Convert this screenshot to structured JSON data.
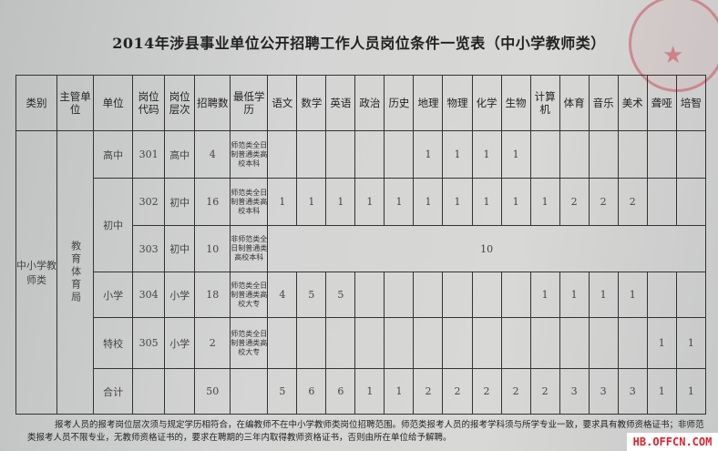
{
  "title": "2014年涉县事业单位公开招聘工作人员岗位条件一览表（中小学教师类）",
  "headers": [
    "类别",
    "主管单位",
    "单位",
    "岗位代码",
    "岗位层次",
    "招聘数",
    "最低学历",
    "语文",
    "数学",
    "英语",
    "政治",
    "历史",
    "地理",
    "物理",
    "化学",
    "生物",
    "计算机",
    "体育",
    "音乐",
    "美术",
    "聋哑",
    "培智"
  ],
  "category": "中小学教师类",
  "authority": "教育体育局",
  "rows": [
    {
      "unit": "高中",
      "code": "301",
      "level": "高中",
      "count": "4",
      "edu": "师范类全日制普通类高校本科",
      "subjects": [
        "",
        "",
        "",
        "",
        "",
        "1",
        "1",
        "1",
        "1",
        "",
        "",
        "",
        "",
        "",
        ""
      ]
    },
    {
      "unit": "初中",
      "code": "302",
      "level": "初中",
      "count": "16",
      "edu": "师范类全日制普通类高校本科",
      "subjects": [
        "1",
        "1",
        "1",
        "1",
        "1",
        "1",
        "1",
        "1",
        "1",
        "1",
        "2",
        "2",
        "2",
        "",
        ""
      ]
    },
    {
      "code": "303",
      "level": "初中",
      "count": "10",
      "edu": "非师范类全日制普通类高校本科",
      "merged": "10"
    },
    {
      "unit": "小学",
      "code": "304",
      "level": "小学",
      "count": "18",
      "edu": "师范类全日制普通类高校大专",
      "subjects": [
        "4",
        "5",
        "5",
        "",
        "",
        "",
        "",
        "",
        "",
        "1",
        "1",
        "1",
        "1",
        "",
        ""
      ]
    },
    {
      "unit": "特校",
      "code": "305",
      "level": "小学",
      "count": "2",
      "edu": "师范类全日制普通类高校大专",
      "subjects": [
        "",
        "",
        "",
        "",
        "",
        "",
        "",
        "",
        "",
        "",
        "",
        "",
        "",
        "1",
        "1"
      ]
    }
  ],
  "total": {
    "label": "合计",
    "count": "50",
    "subjects": [
      "5",
      "6",
      "6",
      "1",
      "1",
      "2",
      "2",
      "2",
      "2",
      "2",
      "3",
      "3",
      "3",
      "1",
      "1"
    ]
  },
  "note": "报考人员的报考岗位层次须与规定学历相符合，在编教师不在中小学教师类岗位招聘范围。师范类报考人员的报考学科须与所学专业一致，要求具有教师资格证书；非师范类报考人员不限专业，无教师资格证书的，要求在聘期的三年内取得教师资格证书，否则由所在单位给予解聘。",
  "watermark": "HB.OFFCN.COM",
  "colors": {
    "stamp": "#c83c46",
    "watermark": "#e0202a"
  }
}
